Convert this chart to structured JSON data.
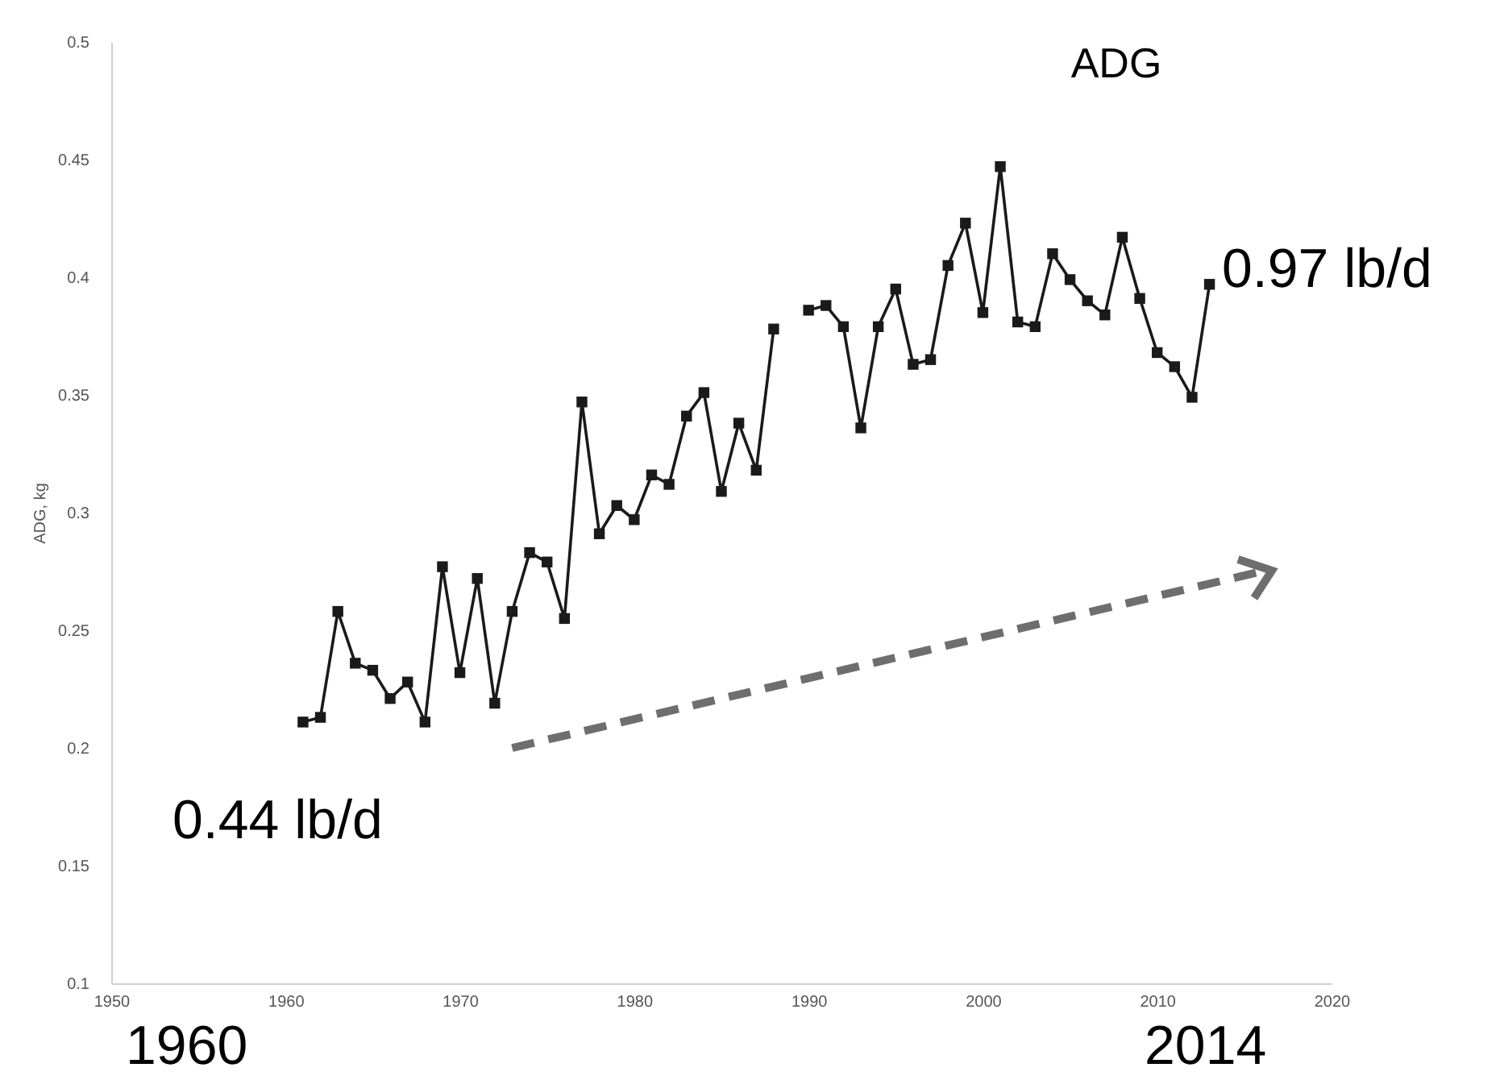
{
  "chart_data": {
    "type": "line",
    "title": "ADG",
    "ylabel": "ADG, kg",
    "x": [
      1961,
      1962,
      1963,
      1964,
      1965,
      1966,
      1967,
      1968,
      1969,
      1970,
      1971,
      1972,
      1973,
      1974,
      1975,
      1976,
      1977,
      1978,
      1979,
      1980,
      1981,
      1982,
      1983,
      1984,
      1985,
      1986,
      1987,
      1988,
      1989,
      1990,
      1991,
      1992,
      1993,
      1994,
      1995,
      1996,
      1997,
      1998,
      1999,
      2000,
      2001,
      2002,
      2003,
      2004,
      2005,
      2006,
      2007,
      2008,
      2009,
      2010,
      2011,
      2012,
      2013
    ],
    "series": [
      {
        "color": "#1a1a1a",
        "values": [
          0.211,
          0.213,
          0.258,
          0.236,
          0.233,
          0.221,
          0.228,
          0.211,
          0.277,
          0.232,
          0.272,
          0.219,
          0.258,
          0.283,
          0.279,
          0.255,
          0.347,
          0.291,
          0.303,
          0.297,
          0.316,
          0.312,
          0.341,
          0.351,
          0.309,
          0.338,
          0.318,
          0.378,
          null,
          0.386,
          0.388,
          0.379,
          0.336,
          0.379,
          0.395,
          0.363,
          0.365,
          0.405,
          0.423,
          0.385,
          0.447,
          0.381,
          0.379,
          0.41,
          0.399,
          0.39,
          0.384,
          0.417,
          0.391,
          0.368,
          0.362,
          0.349,
          0.397
        ]
      },
      {
        "type": "line",
        "color": "#6e6e6e",
        "line_style": "dashed",
        "marker": "none",
        "x": [
          1973,
          2016
        ],
        "values": [
          0.2,
          0.275
        ]
      }
    ],
    "xlim": [
      1950,
      2020
    ],
    "xticks": [
      1950,
      1960,
      1970,
      1980,
      1990,
      2000,
      2010,
      2020
    ],
    "ylim": [
      0.1,
      0.5
    ],
    "yticks": [
      0.1,
      0.15,
      0.2,
      0.25,
      0.3,
      0.35,
      0.4,
      0.45,
      0.5
    ],
    "grid": false,
    "legend": false,
    "marker": "square",
    "line_style": "solid",
    "annotations": [
      "0.44 lb/d",
      "0.97 lb/d",
      "1960",
      "2014"
    ]
  }
}
